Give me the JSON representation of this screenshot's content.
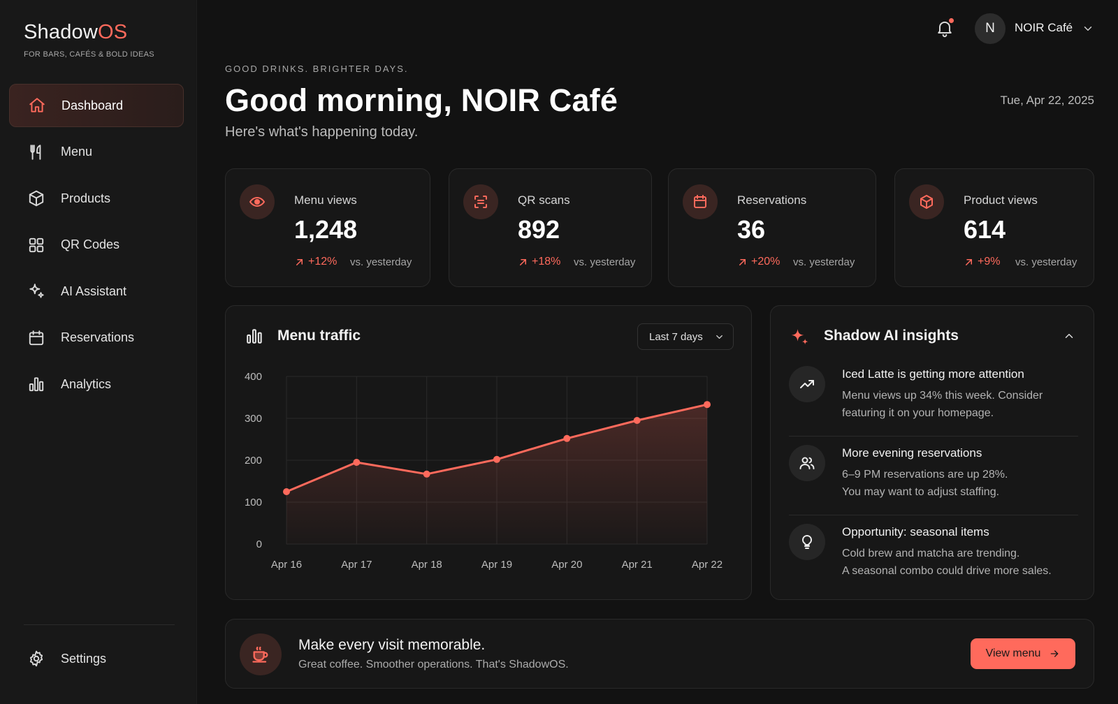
{
  "brand": {
    "name_main": "Shadow",
    "name_accent": "OS",
    "tagline": "FOR BARS, CAFÉS & BOLD IDEAS"
  },
  "sidebar": {
    "items": [
      {
        "label": "Dashboard",
        "icon": "home-icon",
        "active": true
      },
      {
        "label": "Menu",
        "icon": "fork-knife-icon"
      },
      {
        "label": "Products",
        "icon": "box-icon"
      },
      {
        "label": "QR Codes",
        "icon": "grid-icon"
      },
      {
        "label": "AI Assistant",
        "icon": "sparkles-icon"
      },
      {
        "label": "Reservations",
        "icon": "calendar-icon"
      },
      {
        "label": "Analytics",
        "icon": "bar-chart-icon"
      }
    ],
    "settings": {
      "label": "Settings",
      "icon": "gear-icon"
    }
  },
  "topbar": {
    "avatar_initial": "N",
    "account_name": "NOIR Café"
  },
  "header": {
    "eyebrow": "GOOD DRINKS. BRIGHTER DAYS.",
    "title": "Good morning, NOIR Café",
    "subtitle": "Here's what's happening today.",
    "date": "Tue, Apr 22, 2025"
  },
  "stats": [
    {
      "label": "Menu views",
      "value": "1,248",
      "delta": "+12%",
      "compare": "vs. yesterday",
      "icon": "eye-icon"
    },
    {
      "label": "QR scans",
      "value": "892",
      "delta": "+18%",
      "compare": "vs. yesterday",
      "icon": "scan-icon"
    },
    {
      "label": "Reservations",
      "value": "36",
      "delta": "+20%",
      "compare": "vs. yesterday",
      "icon": "calendar-icon"
    },
    {
      "label": "Product views",
      "value": "614",
      "delta": "+9%",
      "compare": "vs. yesterday",
      "icon": "box-icon"
    }
  ],
  "traffic": {
    "title": "Menu traffic",
    "range": "Last 7 days"
  },
  "chart_data": {
    "type": "area",
    "categories": [
      "Apr 16",
      "Apr 17",
      "Apr 18",
      "Apr 19",
      "Apr 20",
      "Apr 21",
      "Apr 22"
    ],
    "series": [
      {
        "values": [
          125,
          195,
          167,
          202,
          252,
          295,
          333
        ]
      }
    ],
    "yticks": [
      "0",
      "100",
      "200",
      "300",
      "400"
    ],
    "ylim": [
      0,
      400
    ],
    "grid": true,
    "color": "#ff6a5c"
  },
  "insights": {
    "title": "Shadow AI insights",
    "items": [
      {
        "title": "Iced Latte is getting more attention",
        "line1": "Menu views up 34% this week. Consider",
        "line2": "featuring it on your homepage.",
        "icon": "trend-up-icon"
      },
      {
        "title": "More evening reservations",
        "line1": "6–9 PM reservations are up 28%.",
        "line2": "You may want to adjust staffing.",
        "icon": "users-icon"
      },
      {
        "title": "Opportunity: seasonal items",
        "line1": "Cold brew and matcha are trending.",
        "line2": "A seasonal combo could drive more sales.",
        "icon": "lightbulb-icon"
      }
    ]
  },
  "banner": {
    "title": "Make every visit memorable.",
    "subtitle": "Great coffee. Smoother operations. That's ShadowOS.",
    "cta": "View menu",
    "icon": "coffee-cup-icon"
  },
  "colors": {
    "accent": "#ff6a5c",
    "background": "#121212",
    "card": "#171717"
  }
}
